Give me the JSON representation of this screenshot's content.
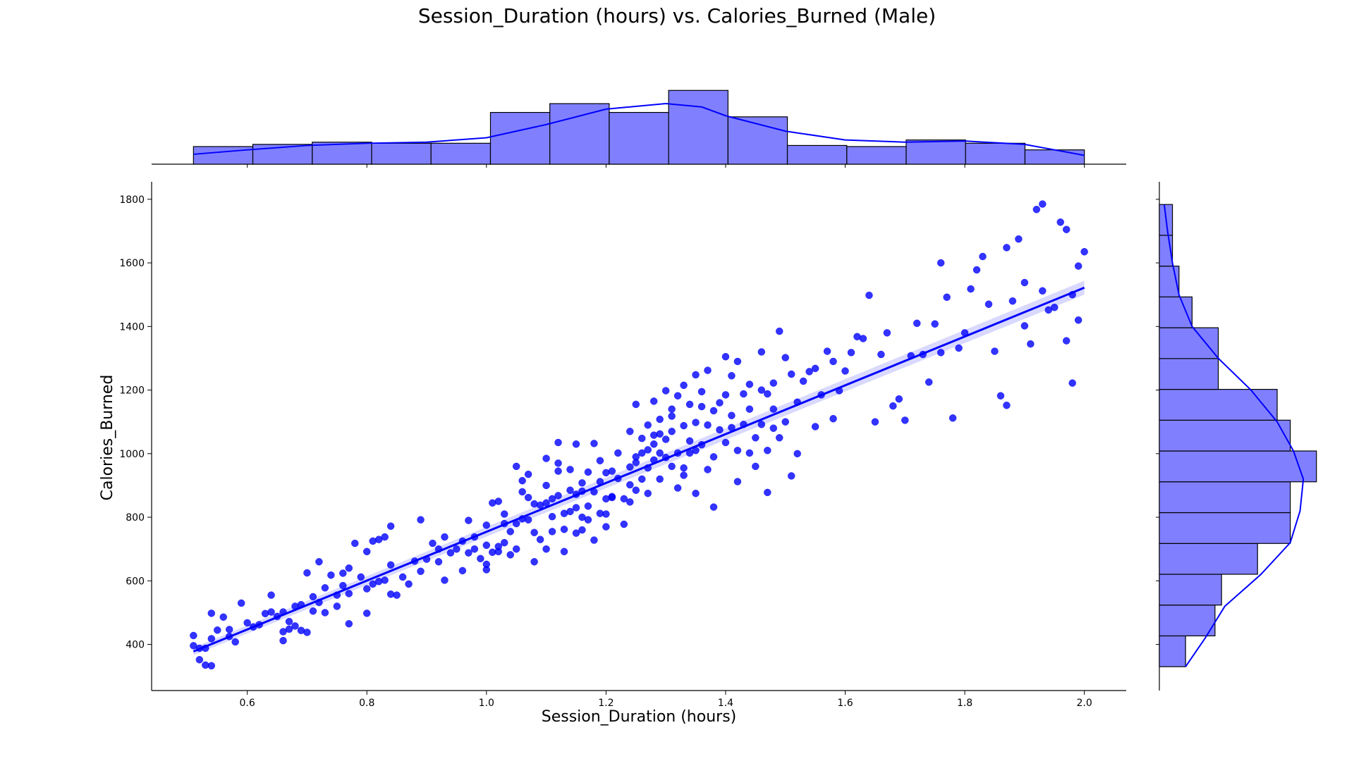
{
  "title": "Session_Duration (hours) vs. Calories_Burned (Male)",
  "xlabel": "Session_Duration (hours)",
  "ylabel": "Calories_Burned",
  "colors": {
    "points": "#0000ff",
    "bars": "#8080ff",
    "edge": "#000000",
    "band": "#0000ff"
  },
  "chart_data": {
    "type": "scatter",
    "title": "Session_Duration (hours) vs. Calories_Burned (Male)",
    "xlabel": "Session_Duration (hours)",
    "ylabel": "Calories_Burned",
    "xlim": [
      0.44,
      2.07
    ],
    "ylim": [
      255,
      1855
    ],
    "x_ticks": [
      0.6,
      0.8,
      1.0,
      1.2,
      1.4,
      1.6,
      1.8,
      2.0
    ],
    "x_tick_labels": [
      "0.6",
      "0.8",
      "1.0",
      "1.2",
      "1.4",
      "1.6",
      "1.8",
      "2.0"
    ],
    "y_ticks": [
      400,
      600,
      800,
      1000,
      1200,
      1400,
      1600,
      1800
    ],
    "y_tick_labels": [
      "400",
      "600",
      "800",
      "1000",
      "1200",
      "1400",
      "1600",
      "1800"
    ],
    "regression": {
      "x": [
        0.51,
        2.0
      ],
      "y": [
        378,
        1522
      ],
      "ci_halfwidth": [
        12,
        22
      ]
    },
    "grid": false,
    "points": [
      [
        0.51,
        428
      ],
      [
        0.51,
        396
      ],
      [
        0.52,
        388
      ],
      [
        0.52,
        352
      ],
      [
        0.53,
        388
      ],
      [
        0.53,
        335
      ],
      [
        0.54,
        333
      ],
      [
        0.54,
        498
      ],
      [
        0.54,
        418
      ],
      [
        0.55,
        445
      ],
      [
        0.56,
        486
      ],
      [
        0.57,
        425
      ],
      [
        0.57,
        447
      ],
      [
        0.58,
        408
      ],
      [
        0.59,
        530
      ],
      [
        0.6,
        468
      ],
      [
        0.61,
        455
      ],
      [
        0.62,
        462
      ],
      [
        0.63,
        497
      ],
      [
        0.64,
        555
      ],
      [
        0.64,
        502
      ],
      [
        0.65,
        488
      ],
      [
        0.66,
        412
      ],
      [
        0.66,
        440
      ],
      [
        0.66,
        502
      ],
      [
        0.67,
        448
      ],
      [
        0.67,
        472
      ],
      [
        0.68,
        458
      ],
      [
        0.68,
        520
      ],
      [
        0.69,
        525
      ],
      [
        0.69,
        444
      ],
      [
        0.7,
        438
      ],
      [
        0.7,
        625
      ],
      [
        0.71,
        505
      ],
      [
        0.71,
        550
      ],
      [
        0.72,
        660
      ],
      [
        0.72,
        532
      ],
      [
        0.73,
        578
      ],
      [
        0.73,
        500
      ],
      [
        0.74,
        618
      ],
      [
        0.75,
        555
      ],
      [
        0.75,
        520
      ],
      [
        0.76,
        624
      ],
      [
        0.76,
        585
      ],
      [
        0.77,
        640
      ],
      [
        0.77,
        560
      ],
      [
        0.77,
        465
      ],
      [
        0.78,
        718
      ],
      [
        0.79,
        612
      ],
      [
        0.8,
        692
      ],
      [
        0.8,
        575
      ],
      [
        0.8,
        498
      ],
      [
        0.81,
        725
      ],
      [
        0.81,
        590
      ],
      [
        0.82,
        730
      ],
      [
        0.82,
        598
      ],
      [
        0.83,
        738
      ],
      [
        0.83,
        602
      ],
      [
        0.84,
        772
      ],
      [
        0.84,
        650
      ],
      [
        0.84,
        558
      ],
      [
        0.85,
        555
      ],
      [
        0.86,
        612
      ],
      [
        0.87,
        590
      ],
      [
        0.88,
        662
      ],
      [
        0.89,
        630
      ],
      [
        0.89,
        792
      ],
      [
        0.9,
        668
      ],
      [
        0.91,
        718
      ],
      [
        0.92,
        660
      ],
      [
        0.93,
        738
      ],
      [
        0.93,
        602
      ],
      [
        0.94,
        688
      ],
      [
        0.95,
        700
      ],
      [
        0.96,
        725
      ],
      [
        0.96,
        632
      ],
      [
        0.97,
        790
      ],
      [
        0.97,
        688
      ],
      [
        0.98,
        700
      ],
      [
        0.99,
        670
      ],
      [
        1.0,
        712
      ],
      [
        1.0,
        635
      ],
      [
        1.0,
        775
      ],
      [
        1.0,
        652
      ],
      [
        1.01,
        845
      ],
      [
        1.01,
        690
      ],
      [
        1.02,
        692
      ],
      [
        1.02,
        850
      ],
      [
        1.02,
        708
      ],
      [
        1.03,
        720
      ],
      [
        1.03,
        810
      ],
      [
        1.04,
        755
      ],
      [
        1.04,
        682
      ],
      [
        1.05,
        960
      ],
      [
        1.05,
        700
      ],
      [
        1.06,
        795
      ],
      [
        1.06,
        915
      ],
      [
        1.06,
        880
      ],
      [
        1.07,
        935
      ],
      [
        1.07,
        792
      ],
      [
        1.08,
        752
      ],
      [
        1.08,
        842
      ],
      [
        1.08,
        660
      ],
      [
        1.09,
        838
      ],
      [
        1.09,
        730
      ],
      [
        1.1,
        845
      ],
      [
        1.1,
        900
      ],
      [
        1.1,
        985
      ],
      [
        1.1,
        700
      ],
      [
        1.11,
        755
      ],
      [
        1.11,
        858
      ],
      [
        1.12,
        868
      ],
      [
        1.12,
        945
      ],
      [
        1.12,
        1035
      ],
      [
        1.13,
        812
      ],
      [
        1.13,
        692
      ],
      [
        1.13,
        762
      ],
      [
        1.14,
        818
      ],
      [
        1.14,
        885
      ],
      [
        1.14,
        950
      ],
      [
        1.15,
        750
      ],
      [
        1.15,
        872
      ],
      [
        1.15,
        1030
      ],
      [
        1.16,
        800
      ],
      [
        1.16,
        908
      ],
      [
        1.16,
        760
      ],
      [
        1.17,
        835
      ],
      [
        1.17,
        942
      ],
      [
        1.17,
        792
      ],
      [
        1.18,
        728
      ],
      [
        1.18,
        880
      ],
      [
        1.18,
        1032
      ],
      [
        1.19,
        978
      ],
      [
        1.19,
        912
      ],
      [
        1.2,
        810
      ],
      [
        1.2,
        858
      ],
      [
        1.2,
        770
      ],
      [
        1.21,
        945
      ],
      [
        1.21,
        862
      ],
      [
        1.22,
        1002
      ],
      [
        1.22,
        922
      ],
      [
        1.23,
        858
      ],
      [
        1.23,
        778
      ],
      [
        1.24,
        958
      ],
      [
        1.24,
        1070
      ],
      [
        1.24,
        848
      ],
      [
        1.25,
        885
      ],
      [
        1.25,
        1155
      ],
      [
        1.25,
        990
      ],
      [
        1.26,
        920
      ],
      [
        1.26,
        1002
      ],
      [
        1.26,
        1048
      ],
      [
        1.27,
        1090
      ],
      [
        1.27,
        955
      ],
      [
        1.27,
        875
      ],
      [
        1.28,
        1165
      ],
      [
        1.28,
        980
      ],
      [
        1.28,
        1030
      ],
      [
        1.29,
        1108
      ],
      [
        1.29,
        920
      ],
      [
        1.29,
        1062
      ],
      [
        1.3,
        1198
      ],
      [
        1.3,
        988
      ],
      [
        1.3,
        1045
      ],
      [
        1.31,
        1140
      ],
      [
        1.31,
        960
      ],
      [
        1.31,
        1070
      ],
      [
        1.32,
        1182
      ],
      [
        1.32,
        1002
      ],
      [
        1.32,
        892
      ],
      [
        1.33,
        1215
      ],
      [
        1.33,
        1088
      ],
      [
        1.33,
        955
      ],
      [
        1.34,
        1155
      ],
      [
        1.34,
        1040
      ],
      [
        1.35,
        1248
      ],
      [
        1.35,
        1010
      ],
      [
        1.35,
        875
      ],
      [
        1.36,
        1148
      ],
      [
        1.36,
        1028
      ],
      [
        1.37,
        1090
      ],
      [
        1.37,
        950
      ],
      [
        1.37,
        1262
      ],
      [
        1.38,
        1135
      ],
      [
        1.38,
        990
      ],
      [
        1.38,
        832
      ],
      [
        1.39,
        1075
      ],
      [
        1.4,
        1305
      ],
      [
        1.4,
        1185
      ],
      [
        1.4,
        1035
      ],
      [
        1.41,
        1120
      ],
      [
        1.41,
        1082
      ],
      [
        1.42,
        1290
      ],
      [
        1.42,
        1010
      ],
      [
        1.42,
        912
      ],
      [
        1.43,
        1092
      ],
      [
        1.44,
        1218
      ],
      [
        1.44,
        1140
      ],
      [
        1.45,
        1050
      ],
      [
        1.45,
        960
      ],
      [
        1.46,
        1320
      ],
      [
        1.46,
        1200
      ],
      [
        1.46,
        1092
      ],
      [
        1.47,
        1188
      ],
      [
        1.47,
        1010
      ],
      [
        1.48,
        1140
      ],
      [
        1.48,
        1222
      ],
      [
        1.49,
        1385
      ],
      [
        1.49,
        1050
      ],
      [
        1.5,
        1100
      ],
      [
        1.5,
        1302
      ],
      [
        1.51,
        1250
      ],
      [
        1.51,
        930
      ],
      [
        1.52,
        1000
      ],
      [
        1.53,
        1228
      ],
      [
        1.54,
        1258
      ],
      [
        1.55,
        1085
      ],
      [
        1.56,
        1185
      ],
      [
        1.57,
        1322
      ],
      [
        1.58,
        1110
      ],
      [
        1.58,
        1290
      ],
      [
        1.59,
        1198
      ],
      [
        1.6,
        1260
      ],
      [
        1.61,
        1318
      ],
      [
        1.62,
        1368
      ],
      [
        1.63,
        1362
      ],
      [
        1.64,
        1498
      ],
      [
        1.65,
        1100
      ],
      [
        1.66,
        1312
      ],
      [
        1.67,
        1380
      ],
      [
        1.68,
        1150
      ],
      [
        1.69,
        1172
      ],
      [
        1.7,
        1105
      ],
      [
        1.71,
        1308
      ],
      [
        1.72,
        1410
      ],
      [
        1.73,
        1312
      ],
      [
        1.74,
        1225
      ],
      [
        1.75,
        1408
      ],
      [
        1.76,
        1318
      ],
      [
        1.76,
        1600
      ],
      [
        1.77,
        1492
      ],
      [
        1.78,
        1112
      ],
      [
        1.79,
        1332
      ],
      [
        1.8,
        1380
      ],
      [
        1.81,
        1518
      ],
      [
        1.82,
        1578
      ],
      [
        1.83,
        1620
      ],
      [
        1.84,
        1470
      ],
      [
        1.85,
        1322
      ],
      [
        1.86,
        1182
      ],
      [
        1.87,
        1152
      ],
      [
        1.87,
        1648
      ],
      [
        1.88,
        1480
      ],
      [
        1.89,
        1675
      ],
      [
        1.9,
        1402
      ],
      [
        1.9,
        1538
      ],
      [
        1.91,
        1345
      ],
      [
        1.92,
        1768
      ],
      [
        1.93,
        1512
      ],
      [
        1.93,
        1785
      ],
      [
        1.94,
        1452
      ],
      [
        1.95,
        1460
      ],
      [
        1.96,
        1728
      ],
      [
        1.97,
        1355
      ],
      [
        1.97,
        1705
      ],
      [
        1.98,
        1222
      ],
      [
        1.98,
        1500
      ],
      [
        1.99,
        1420
      ],
      [
        1.99,
        1590
      ],
      [
        2.0,
        1635
      ],
      [
        1.05,
        780
      ],
      [
        1.12,
        970
      ],
      [
        1.21,
        865
      ],
      [
        1.28,
        1058
      ],
      [
        1.33,
        932
      ],
      [
        1.36,
        1195
      ],
      [
        1.43,
        1188
      ],
      [
        1.48,
        1080
      ],
      [
        1.52,
        1162
      ],
      [
        1.55,
        1268
      ],
      [
        1.15,
        830
      ],
      [
        1.19,
        812
      ],
      [
        1.24,
        902
      ],
      [
        1.27,
        1012
      ],
      [
        1.31,
        1118
      ],
      [
        1.34,
        1002
      ],
      [
        1.39,
        1160
      ],
      [
        1.41,
        1245
      ],
      [
        1.44,
        1002
      ],
      [
        1.47,
        878
      ],
      [
        0.92,
        700
      ],
      [
        0.98,
        738
      ],
      [
        1.03,
        780
      ],
      [
        1.07,
        862
      ],
      [
        1.11,
        802
      ],
      [
        1.16,
        882
      ],
      [
        1.2,
        940
      ],
      [
        1.25,
        972
      ],
      [
        1.29,
        1002
      ],
      [
        1.35,
        1098
      ]
    ],
    "x_hist": {
      "bin_edges": [
        0.51,
        0.6093,
        0.7087,
        0.808,
        0.9073,
        1.0067,
        1.106,
        1.2053,
        1.3047,
        1.404,
        1.5033,
        1.6027,
        1.702,
        1.8013,
        1.9007,
        2.0
      ],
      "counts": [
        16,
        18,
        20,
        19,
        19,
        47,
        55,
        47,
        67,
        43,
        17,
        16,
        22,
        19,
        13
      ],
      "kde": [
        [
          0.51,
          9
        ],
        [
          0.6,
          13
        ],
        [
          0.7,
          17
        ],
        [
          0.8,
          19
        ],
        [
          0.9,
          20
        ],
        [
          1.0,
          24
        ],
        [
          1.1,
          36
        ],
        [
          1.2,
          50
        ],
        [
          1.3,
          55
        ],
        [
          1.36,
          52
        ],
        [
          1.4,
          44
        ],
        [
          1.5,
          30
        ],
        [
          1.6,
          22
        ],
        [
          1.7,
          20
        ],
        [
          1.8,
          21
        ],
        [
          1.9,
          18
        ],
        [
          2.0,
          8
        ]
      ],
      "count_max": 80
    },
    "y_hist": {
      "bin_edges": [
        330,
        426.9,
        523.8,
        620.7,
        717.6,
        814.5,
        911.5,
        1008.4,
        1105.3,
        1202.2,
        1299.1,
        1396,
        1492.9,
        1589.8,
        1686.7,
        1783.6
      ],
      "counts": [
        8,
        17,
        19,
        30,
        40,
        40,
        48,
        40,
        36,
        18,
        18,
        10,
        6,
        4,
        4
      ],
      "kde": [
        [
          330,
          8
        ],
        [
          420,
          14
        ],
        [
          520,
          20
        ],
        [
          620,
          31
        ],
        [
          720,
          40
        ],
        [
          820,
          43
        ],
        [
          920,
          44
        ],
        [
          1008,
          41
        ],
        [
          1100,
          36
        ],
        [
          1200,
          28
        ],
        [
          1300,
          18
        ],
        [
          1400,
          10
        ],
        [
          1500,
          6
        ],
        [
          1600,
          4
        ],
        [
          1700,
          2.5
        ],
        [
          1783,
          1.5
        ]
      ],
      "count_max": 50
    }
  }
}
